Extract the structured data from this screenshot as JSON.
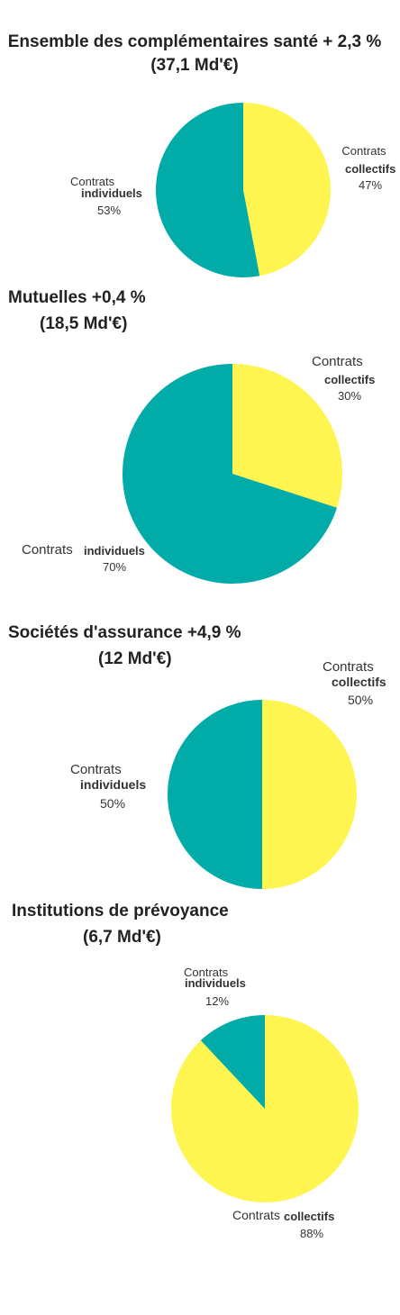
{
  "colors": {
    "collectifs": "#FFF550",
    "individuels": "#00ABA8"
  },
  "chart_data": [
    {
      "type": "pie",
      "title": "Ensemble des complémentaires santé + 2,3 %",
      "subtitle": "(37,1 Md'€)",
      "slices": [
        {
          "word": "Contrats",
          "category": "collectifs",
          "pct_text": "47%",
          "value": 47,
          "color": "#FFF550"
        },
        {
          "word": "Contrats",
          "category": "individuels",
          "pct_text": "53%",
          "value": 53,
          "color": "#00ABA8"
        }
      ]
    },
    {
      "type": "pie",
      "title": "Mutuelles +0,4 %",
      "subtitle": "(18,5 Md'€)",
      "slices": [
        {
          "word": "Contrats",
          "category": "collectifs",
          "pct_text": "30%",
          "value": 30,
          "color": "#FFF550"
        },
        {
          "word": "Contrats",
          "category": "individuels",
          "pct_text": "70%",
          "value": 70,
          "color": "#00ABA8"
        }
      ]
    },
    {
      "type": "pie",
      "title": "Sociétés d'assurance +4,9 %",
      "subtitle": "(12 Md'€)",
      "slices": [
        {
          "word": "Contrats",
          "category": "collectifs",
          "pct_text": "50%",
          "value": 50,
          "color": "#FFF550"
        },
        {
          "word": "Contrats",
          "category": "individuels",
          "pct_text": "50%",
          "value": 50,
          "color": "#00ABA8"
        }
      ]
    },
    {
      "type": "pie",
      "title": "Institutions de prévoyance",
      "subtitle": "(6,7 Md'€)",
      "slices": [
        {
          "word": "Contrats",
          "category": "collectifs",
          "pct_text": "88%",
          "value": 88,
          "color": "#FFF550"
        },
        {
          "word": "Contrats",
          "category": "individuels",
          "pct_text": "12%",
          "value": 12,
          "color": "#00ABA8"
        }
      ]
    }
  ]
}
